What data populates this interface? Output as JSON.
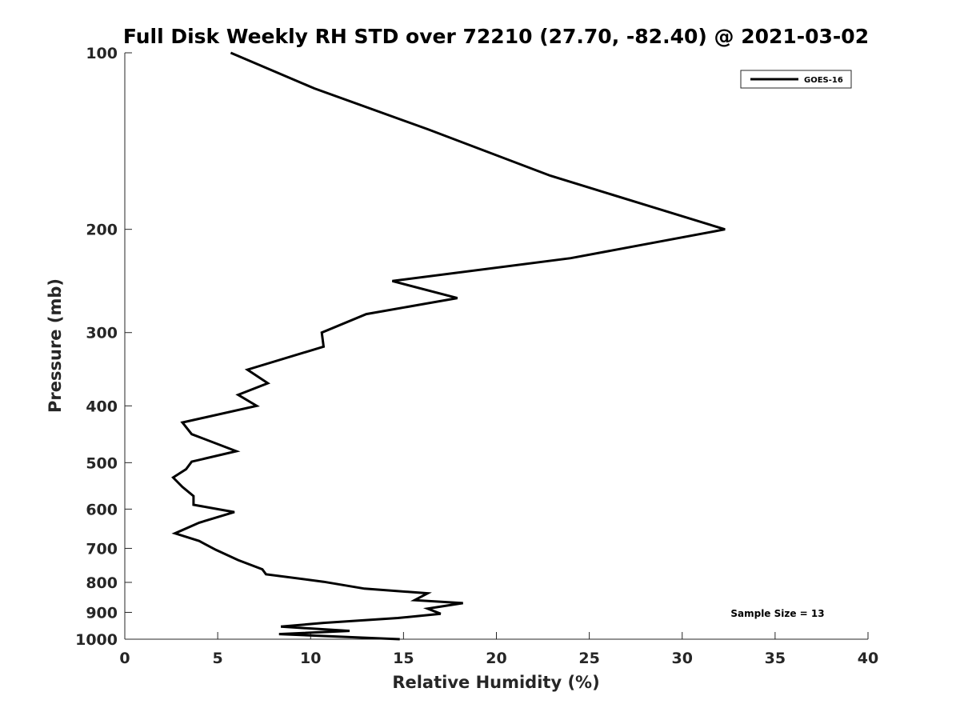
{
  "chart_data": {
    "type": "line",
    "title": "Full Disk Weekly RH STD over 72210 (27.70, -82.40) @ 2021-03-02",
    "xlabel": "Relative Humidity (%)",
    "ylabel": "Pressure (mb)",
    "xlim": [
      0,
      40
    ],
    "ylim": [
      1000,
      100
    ],
    "yscale": "log",
    "y_reversed": true,
    "x_ticks": [
      0,
      5,
      10,
      15,
      20,
      25,
      30,
      35,
      40
    ],
    "y_ticks": [
      100,
      200,
      300,
      400,
      500,
      600,
      700,
      800,
      900,
      1000
    ],
    "grid": false,
    "legend": {
      "position": "top-right",
      "entries": [
        "GOES-16"
      ]
    },
    "annotation": "Sample Size = 13",
    "series": [
      {
        "name": "GOES-16",
        "color": "#000000",
        "x": [
          5.7,
          10.2,
          16.3,
          22.9,
          32.3,
          24.0,
          14.4,
          17.9,
          13.0,
          10.6,
          10.7,
          6.6,
          7.7,
          6.1,
          7.1,
          3.1,
          3.6,
          6.0,
          3.6,
          3.3,
          2.6,
          3.1,
          3.7,
          3.7,
          5.9,
          4.0,
          2.7,
          4.0,
          4.9,
          6.1,
          7.4,
          7.6,
          10.7,
          12.9,
          16.3,
          15.6,
          18.2,
          16.3,
          17.0,
          14.7,
          10.7,
          8.4,
          12.1,
          8.3,
          14.8
        ],
        "y": [
          100,
          115,
          135,
          162,
          200,
          224,
          245,
          262,
          279,
          300,
          317,
          347,
          366,
          383,
          400,
          427,
          447,
          478,
          498,
          513,
          530,
          550,
          570,
          590,
          607,
          633,
          660,
          680,
          704,
          733,
          760,
          775,
          798,
          820,
          835,
          858,
          868,
          887,
          905,
          920,
          938,
          952,
          968,
          980,
          1000
        ]
      }
    ]
  }
}
